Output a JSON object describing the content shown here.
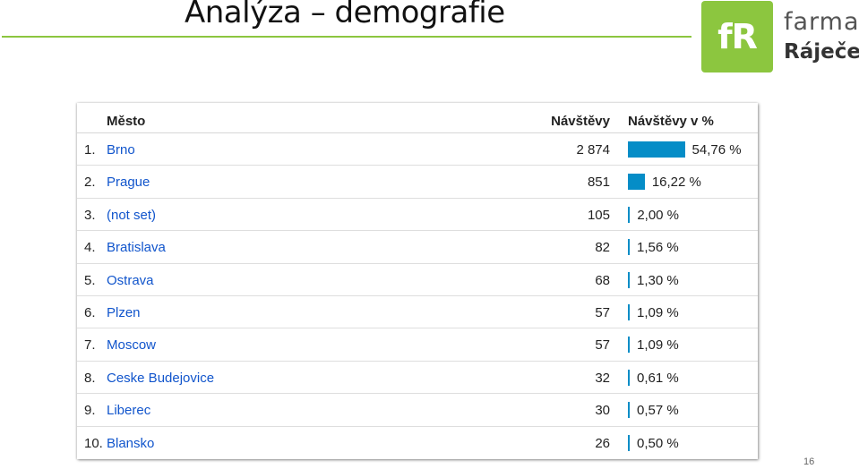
{
  "slide": {
    "title": "Analýza – demografie",
    "page_number": "16"
  },
  "logo": {
    "mark": "fR",
    "line1": "farma",
    "line2": "Ráječek"
  },
  "report": {
    "columns": {
      "city": "Město",
      "visits": "Návštěvy",
      "visits_pct": "Návštěvy v %"
    },
    "rows": [
      {
        "rank": "1.",
        "city": "Brno",
        "visits": "2 874",
        "percent_label": "54,76 %",
        "percent": 54.76
      },
      {
        "rank": "2.",
        "city": "Prague",
        "visits": "851",
        "percent_label": "16,22 %",
        "percent": 16.22
      },
      {
        "rank": "3.",
        "city": "(not set)",
        "visits": "105",
        "percent_label": "2,00 %",
        "percent": 2.0
      },
      {
        "rank": "4.",
        "city": "Bratislava",
        "visits": "82",
        "percent_label": "1,56 %",
        "percent": 1.56
      },
      {
        "rank": "5.",
        "city": "Ostrava",
        "visits": "68",
        "percent_label": "1,30 %",
        "percent": 1.3
      },
      {
        "rank": "6.",
        "city": "Plzen",
        "visits": "57",
        "percent_label": "1,09 %",
        "percent": 1.09
      },
      {
        "rank": "7.",
        "city": "Moscow",
        "visits": "57",
        "percent_label": "1,09 %",
        "percent": 1.09
      },
      {
        "rank": "8.",
        "city": "Ceske Budejovice",
        "visits": "32",
        "percent_label": "0,61 %",
        "percent": 0.61
      },
      {
        "rank": "9.",
        "city": "Liberec",
        "visits": "30",
        "percent_label": "0,57 %",
        "percent": 0.57
      },
      {
        "rank": "10.",
        "city": "Blansko",
        "visits": "26",
        "percent_label": "0,50 %",
        "percent": 0.5
      }
    ]
  },
  "colors": {
    "accent_green": "#8cc63f",
    "bar_blue": "#058dc7",
    "link_blue": "#1155cc"
  }
}
